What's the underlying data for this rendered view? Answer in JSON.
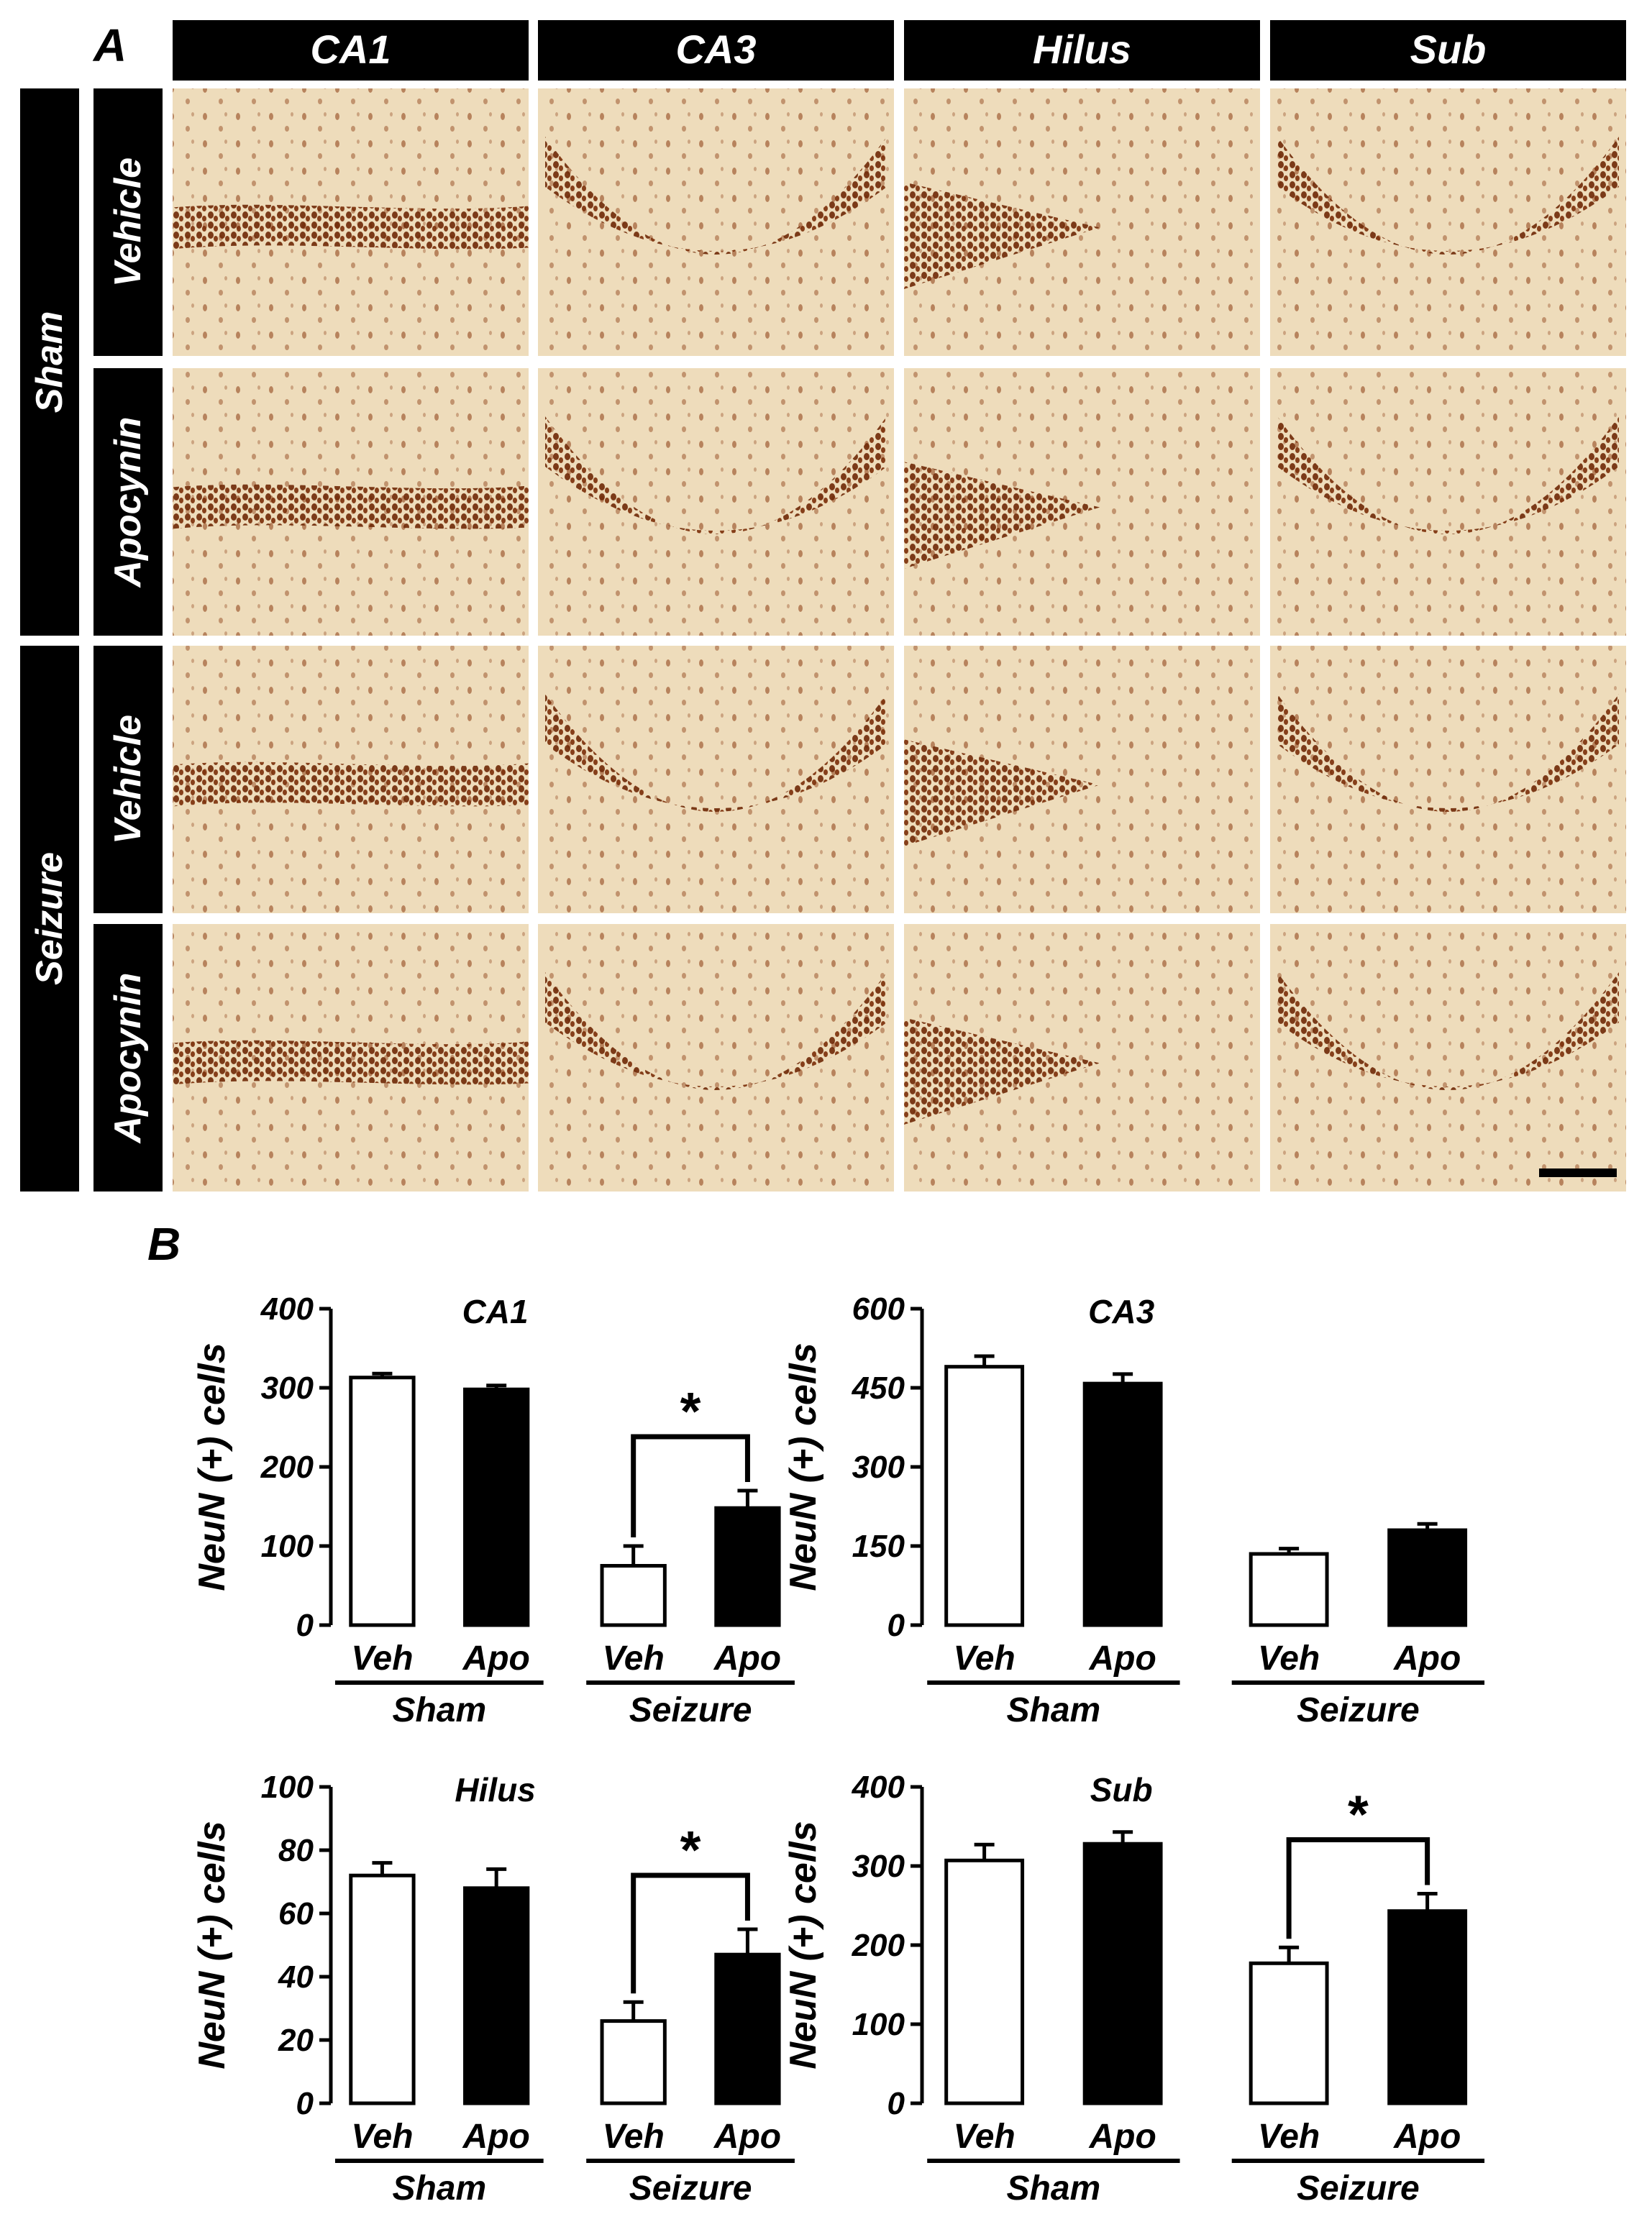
{
  "panel_a": {
    "letter": "A",
    "columns": [
      "CA1",
      "CA3",
      "Hilus",
      "Sub"
    ],
    "groups": [
      {
        "label": "Sham",
        "rows": [
          "Vehicle",
          "Apocynin"
        ]
      },
      {
        "label": "Seizure",
        "rows": [
          "Vehicle",
          "Apocynin"
        ]
      }
    ]
  },
  "panel_b": {
    "letter": "B"
  },
  "colors": {
    "vehicle_fill": "#ffffff",
    "apocynin_fill": "#000000",
    "tissue": "#eedcbb",
    "stain": "#8a3a10"
  },
  "chart_data": [
    {
      "type": "bar",
      "title": "CA1",
      "ylabel": "NeuN (+) cells",
      "categories": [
        "Veh",
        "Apo",
        "Veh",
        "Apo"
      ],
      "groups": [
        "Sham",
        "Seizure"
      ],
      "values": [
        313,
        298,
        75,
        148
      ],
      "errors": [
        5,
        5,
        25,
        22
      ],
      "ylim": [
        0,
        400
      ],
      "yticks": [
        0,
        100,
        200,
        300,
        400
      ],
      "annotations": [
        {
          "text": "*",
          "between": [
            2,
            3
          ]
        }
      ]
    },
    {
      "type": "bar",
      "title": "CA3",
      "ylabel": "NeuN (+) cells",
      "categories": [
        "Veh",
        "Apo",
        "Veh",
        "Apo"
      ],
      "groups": [
        "Sham",
        "Seizure"
      ],
      "values": [
        490,
        458,
        135,
        180
      ],
      "errors": [
        20,
        18,
        10,
        12
      ],
      "ylim": [
        0,
        600
      ],
      "yticks": [
        0,
        150,
        300,
        450,
        600
      ],
      "annotations": []
    },
    {
      "type": "bar",
      "title": "Hilus",
      "ylabel": "NeuN (+) cells",
      "categories": [
        "Veh",
        "Apo",
        "Veh",
        "Apo"
      ],
      "groups": [
        "Sham",
        "Seizure"
      ],
      "values": [
        72,
        68,
        26,
        47
      ],
      "errors": [
        4,
        6,
        6,
        8
      ],
      "ylim": [
        0,
        100
      ],
      "yticks": [
        0,
        20,
        40,
        60,
        80,
        100
      ],
      "annotations": [
        {
          "text": "*",
          "between": [
            2,
            3
          ]
        }
      ]
    },
    {
      "type": "bar",
      "title": "Sub",
      "ylabel": "NeuN (+) cells",
      "categories": [
        "Veh",
        "Apo",
        "Veh",
        "Apo"
      ],
      "groups": [
        "Sham",
        "Seizure"
      ],
      "values": [
        307,
        328,
        177,
        243
      ],
      "errors": [
        20,
        15,
        20,
        22
      ],
      "ylim": [
        0,
        400
      ],
      "yticks": [
        0,
        100,
        200,
        300,
        400
      ],
      "annotations": [
        {
          "text": "*",
          "between": [
            2,
            3
          ]
        }
      ]
    }
  ]
}
